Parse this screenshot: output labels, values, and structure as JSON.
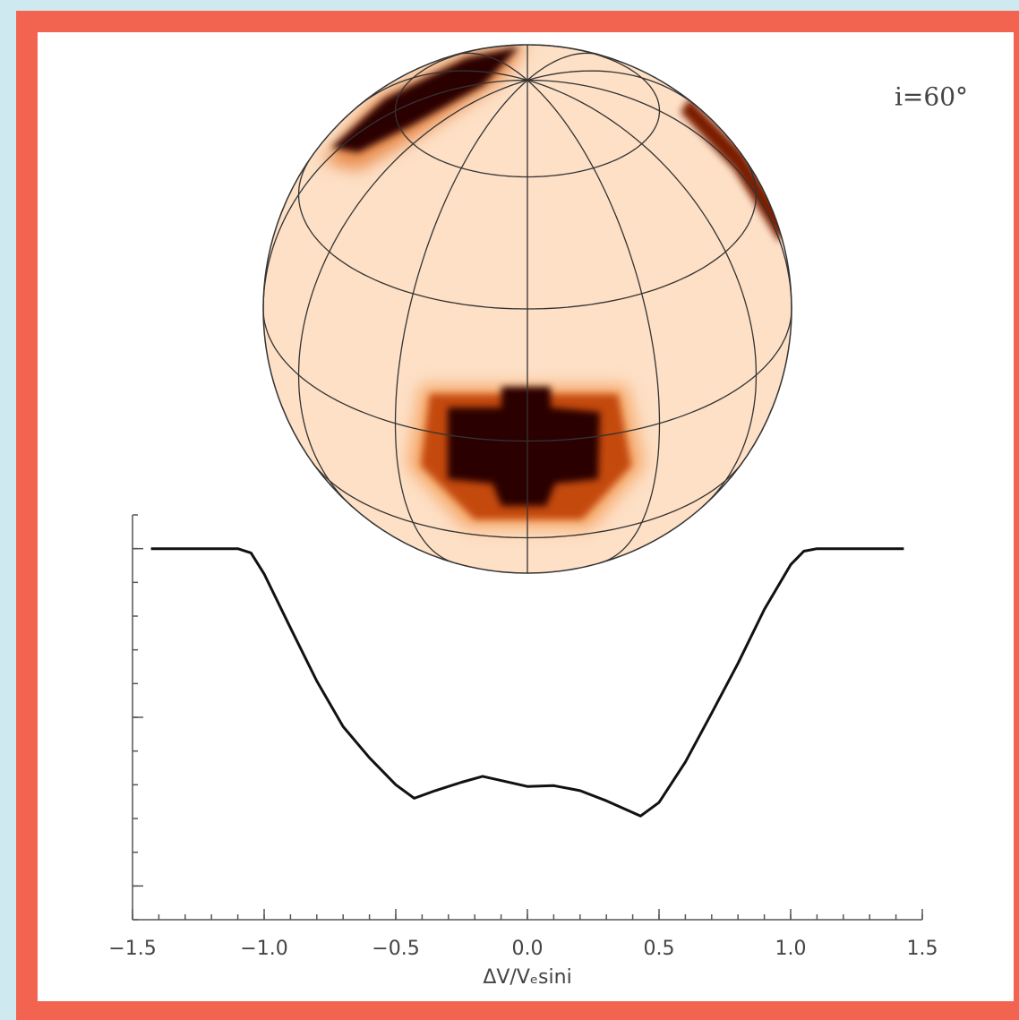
{
  "chart_data": {
    "type": "line",
    "annotation": "i=60°",
    "xlabel": "ΔV/Vₑsini",
    "x": [
      -1.43,
      -1.1,
      -1.05,
      -1.0,
      -0.9,
      -0.8,
      -0.7,
      -0.6,
      -0.5,
      -0.43,
      -0.35,
      -0.25,
      -0.17,
      -0.1,
      0.0,
      0.1,
      0.2,
      0.3,
      0.43,
      0.5,
      0.6,
      0.7,
      0.8,
      0.9,
      1.0,
      1.05,
      1.1,
      1.43
    ],
    "series": [
      {
        "color": "#111111",
        "values": [
          1.0,
          1.0,
          0.995,
          0.97,
          0.906,
          0.843,
          0.789,
          0.752,
          0.72,
          0.704,
          0.713,
          0.723,
          0.73,
          0.725,
          0.718,
          0.719,
          0.713,
          0.701,
          0.683,
          0.699,
          0.747,
          0.805,
          0.864,
          0.928,
          0.981,
          0.997,
          1.0,
          1.0
        ]
      }
    ],
    "xlim": [
      -1.5,
      1.5
    ],
    "xticks": [
      {
        "value": -1.5,
        "label": "−1.5"
      },
      {
        "value": -1.0,
        "label": "−1.0"
      },
      {
        "value": -0.5,
        "label": "−0.5"
      },
      {
        "value": 0.0,
        "label": "0.0"
      },
      {
        "value": 0.5,
        "label": "0.5"
      },
      {
        "value": 1.0,
        "label": "1.0"
      },
      {
        "value": 1.5,
        "label": "1.5"
      }
    ],
    "xminor_step": 0.1,
    "ylim": [
      0.56,
      1.04
    ],
    "yticks": [
      0.6,
      0.8,
      1.0
    ],
    "yminor_step": 0.04
  }
}
